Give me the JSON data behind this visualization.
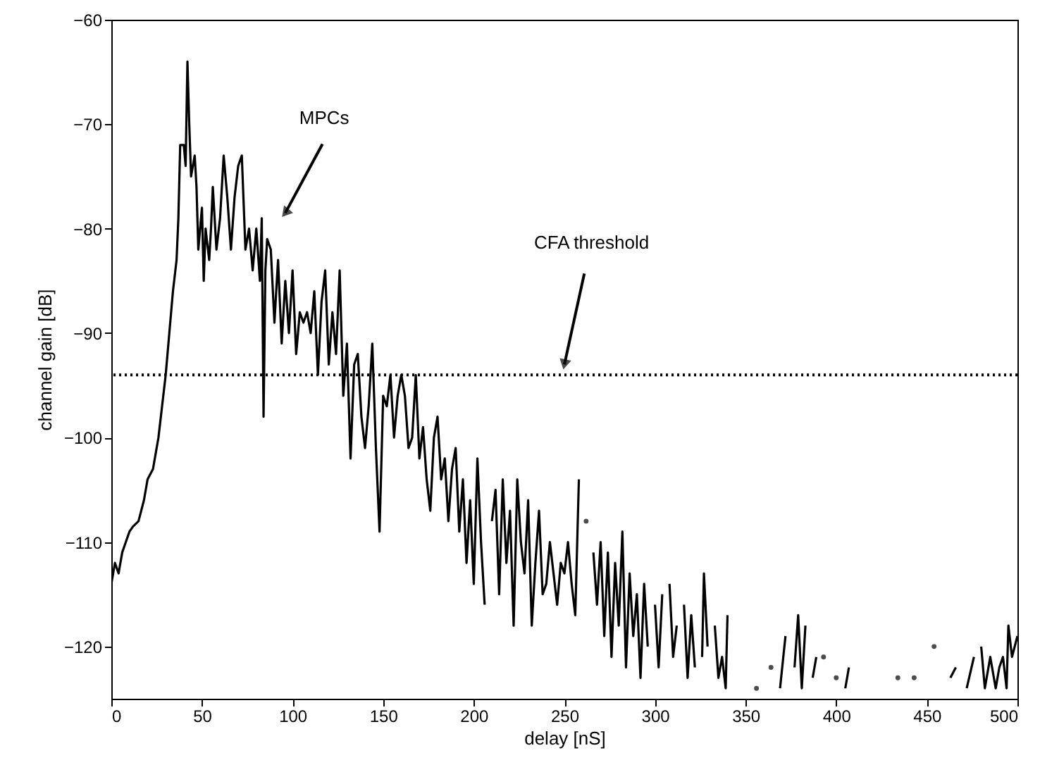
{
  "chart_data": {
    "type": "line",
    "xlabel": "delay [nS]",
    "ylabel": "channel gain [dB]",
    "xlim": [
      0,
      500
    ],
    "ylim": [
      -125,
      -60
    ],
    "xticks": [
      0,
      50,
      100,
      150,
      200,
      250,
      300,
      350,
      400,
      450,
      500
    ],
    "yticks": [
      -120,
      -110,
      -100,
      -90,
      -80,
      -70,
      -60
    ],
    "grid": false,
    "marker": "none",
    "line_style": "solid",
    "annotations": [
      "MPCs"
    ],
    "ref_lines": [
      {
        "axis": "y",
        "value": -94,
        "label": "CFA threshold",
        "line_style": "dotted",
        "color": "#000000"
      }
    ],
    "series": [
      {
        "color": "#000000",
        "x": [
          0,
          2,
          4,
          6,
          8,
          10,
          12,
          15,
          18,
          20,
          23,
          26,
          28,
          30,
          32,
          34,
          36,
          37,
          38,
          40,
          41,
          42,
          43,
          44,
          46,
          47,
          48,
          50,
          51,
          52,
          54,
          55,
          56,
          58,
          60,
          62,
          64,
          66,
          68,
          70,
          72,
          74,
          76,
          78,
          80,
          82,
          83,
          84,
          85,
          86,
          88,
          90,
          92,
          94,
          96,
          98,
          100,
          102,
          104,
          106,
          108,
          110,
          112,
          114,
          116,
          118,
          120,
          122,
          124,
          126,
          128,
          130,
          132,
          134,
          136,
          138,
          140,
          142,
          144,
          146,
          148,
          150,
          152,
          154,
          156,
          158,
          160,
          162,
          164,
          166,
          168,
          170,
          172,
          174,
          176,
          178,
          180,
          182,
          184,
          186,
          188,
          190,
          192,
          194,
          196,
          198,
          200,
          202,
          204,
          206,
          208,
          210,
          212,
          214,
          216,
          218,
          220,
          222,
          224,
          226,
          228,
          230,
          232,
          234,
          236,
          238,
          240,
          242,
          244,
          246,
          248,
          250,
          252,
          254,
          256,
          258,
          260,
          262,
          264,
          266,
          268,
          270,
          272,
          274,
          276,
          278,
          280,
          282,
          284,
          286,
          288,
          290,
          292,
          294,
          296,
          298,
          300,
          302,
          304,
          306,
          308,
          310,
          312,
          314,
          316,
          318,
          320,
          322,
          324,
          326,
          327,
          329,
          331,
          333,
          335,
          337,
          339,
          340,
          342,
          346,
          352,
          356,
          358,
          362,
          364,
          366,
          369,
          372,
          374,
          377,
          379,
          381,
          383,
          385,
          387,
          389,
          391,
          393,
          395,
          400,
          402,
          405,
          407,
          409,
          420,
          432,
          434,
          436,
          441,
          443,
          445,
          450,
          454,
          456,
          460,
          463,
          466,
          468,
          472,
          476,
          478,
          480,
          482,
          485,
          488,
          490,
          492,
          494,
          495,
          497,
          500
        ],
        "values": [
          -114,
          -112,
          -113,
          -111,
          -110,
          -109,
          -108.5,
          -108,
          -106,
          -104,
          -103,
          -100,
          -97,
          -94,
          -90,
          -86,
          -83,
          -79,
          -72,
          -72,
          -74,
          -64,
          -70,
          -75,
          -73,
          -76,
          -82,
          -78,
          -85,
          -80,
          -83,
          -80,
          -76,
          -82,
          -79,
          -73,
          -77,
          -82,
          -77,
          -74,
          -73,
          -82,
          -80,
          -84,
          -80,
          -85,
          -79,
          -98,
          -84,
          -81,
          -82,
          -89,
          -83,
          -91,
          -85,
          -90,
          -84,
          -92,
          -88,
          -89,
          -88,
          -90,
          -86,
          -94,
          -87,
          -84,
          -93,
          -88,
          -92,
          -84,
          -96,
          -91,
          -102,
          -93,
          -92,
          -98,
          -101,
          -97,
          -91,
          -101,
          -109,
          -96,
          -97,
          -94,
          -100,
          -96,
          -94,
          -96,
          -101,
          -100,
          -94,
          -102,
          -99,
          -104,
          -107,
          -100,
          -98,
          -104,
          -102,
          -108,
          -103,
          -101,
          -109,
          -104,
          -112,
          -106,
          -114,
          -102,
          -110,
          -116,
          null,
          -108,
          -105,
          -115,
          -104,
          -112,
          -107,
          -118,
          -104,
          -110,
          -113,
          -106,
          -118,
          -112,
          -107,
          -115,
          -114,
          -110,
          -113,
          -116,
          -112,
          -113,
          -110,
          -114,
          -117,
          -104,
          null,
          -108,
          null,
          -111,
          -116,
          -110,
          -119,
          -111,
          -121,
          -112,
          -118,
          -109,
          -122,
          -113,
          -119,
          -115,
          -123,
          -114,
          -120,
          null,
          -116,
          -122,
          -115,
          null,
          -114,
          -121,
          -118,
          null,
          -116,
          -123,
          -117,
          -122,
          null,
          -121,
          -113,
          -120,
          null,
          -118,
          -123,
          -121,
          -124,
          -117,
          null,
          null,
          null,
          -124,
          null,
          null,
          -122,
          null,
          -124,
          -119,
          null,
          -122,
          -117,
          -124,
          -118,
          null,
          -123,
          -121,
          null,
          -121,
          null,
          -123,
          null,
          -124,
          -122,
          null,
          null,
          null,
          -123,
          null,
          null,
          -123,
          null,
          null,
          -120,
          null,
          null,
          -123,
          -122,
          null,
          -124,
          -121,
          null,
          -120,
          -124,
          -121,
          -124,
          -122,
          -121,
          -124,
          -118,
          -121,
          -119
        ]
      }
    ]
  }
}
